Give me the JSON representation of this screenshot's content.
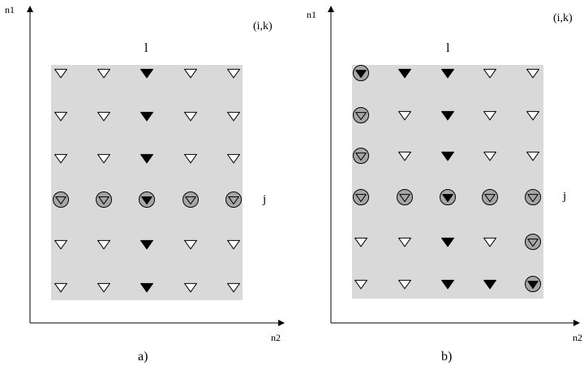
{
  "panels": [
    {
      "caption": "a)",
      "y_axis_label": "n1",
      "x_axis_label": "n2",
      "corner_label": "(i,k)",
      "top_label": "l",
      "right_label": "j",
      "grid": [
        [
          "open",
          "open",
          "filled",
          "open",
          "open"
        ],
        [
          "open",
          "open",
          "filled",
          "open",
          "open"
        ],
        [
          "open",
          "open",
          "filled",
          "open",
          "open"
        ],
        [
          "circled-gray",
          "circled-gray",
          "circled-filled",
          "circled-gray",
          "circled-gray"
        ],
        [
          "open",
          "open",
          "filled",
          "open",
          "open"
        ],
        [
          "open",
          "open",
          "filled",
          "open",
          "open"
        ]
      ]
    },
    {
      "caption": "b)",
      "y_axis_label": "n1",
      "x_axis_label": "n2",
      "corner_label": "(i,k)",
      "top_label": "l",
      "right_label": "j",
      "grid": [
        [
          "circled-filled",
          "filled",
          "filled",
          "open",
          "open"
        ],
        [
          "circled-gray",
          "open",
          "filled",
          "open",
          "open"
        ],
        [
          "circled-gray",
          "open",
          "filled",
          "open",
          "open"
        ],
        [
          "circled-gray",
          "circled-gray",
          "circled-filled",
          "circled-gray",
          "circled-gray"
        ],
        [
          "open",
          "open",
          "filled",
          "open",
          "circled-gray"
        ],
        [
          "open",
          "open",
          "filled",
          "filled",
          "circled-filled"
        ]
      ]
    }
  ],
  "colors": {
    "panel_fill": "#d9d9d9",
    "circle_fill": "#a6a6a6",
    "marker_stroke": "#000000"
  }
}
